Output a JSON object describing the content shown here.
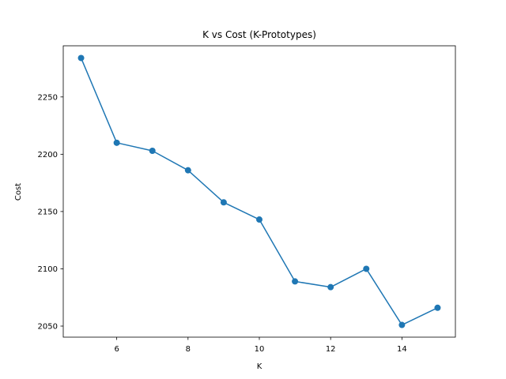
{
  "chart_data": {
    "type": "line",
    "title": "K vs Cost (K-Prototypes)",
    "xlabel": "K",
    "ylabel": "Cost",
    "x": [
      5,
      6,
      7,
      8,
      9,
      10,
      11,
      12,
      13,
      14,
      15
    ],
    "series": [
      {
        "values": [
          2284,
          2210,
          2203,
          2186,
          2158,
          2143,
          2089,
          2084,
          2100,
          2051,
          2066
        ],
        "color": "#1f77b4",
        "marker": "circle"
      }
    ],
    "xticks": [
      6,
      8,
      10,
      12,
      14
    ],
    "yticks": [
      2050,
      2100,
      2150,
      2200,
      2250
    ],
    "xlim": [
      4.5,
      15.5
    ],
    "ylim": [
      2040.35,
      2294.65
    ],
    "grid": false,
    "legend": "none"
  }
}
